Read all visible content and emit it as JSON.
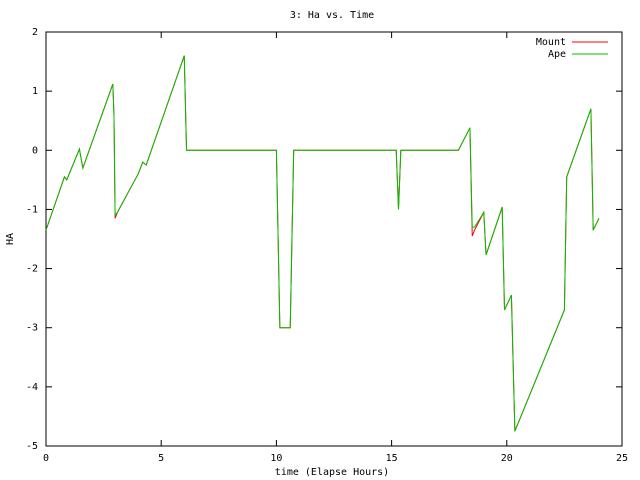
{
  "chart_data": {
    "type": "line",
    "title": "3: Ha vs. Time",
    "x_label": "time (Elapse Hours)",
    "y_label": "HA",
    "x": [
      0,
      0.8,
      0.9,
      1.45,
      1.6,
      2.9,
      2.95,
      3.0,
      3.1,
      4.0,
      4.2,
      4.35,
      6.0,
      6.1,
      10.0,
      10.15,
      10.6,
      10.75,
      15.2,
      15.3,
      15.4,
      17.9,
      18.4,
      18.5,
      18.6,
      19.0,
      19.1,
      19.8,
      19.9,
      20.2,
      20.35,
      22.5,
      22.6,
      23.65,
      23.75,
      24.0
    ],
    "series": [
      {
        "name": "Mount",
        "color": "#ff0000",
        "values": [
          -1.35,
          -0.45,
          -0.5,
          0.02,
          -0.3,
          1.12,
          0.6,
          -1.15,
          -1.05,
          -0.4,
          -0.2,
          -0.25,
          1.6,
          0,
          0,
          -3.0,
          -3.0,
          0,
          0,
          -1.0,
          0,
          0,
          0.38,
          -1.45,
          -1.35,
          -1.05,
          -1.77,
          -0.96,
          -2.7,
          -2.45,
          -4.75,
          -2.7,
          -0.45,
          0.7,
          -1.35,
          -1.15
        ]
      },
      {
        "name": "Ape",
        "color": "#00c000",
        "values": [
          -1.35,
          -0.45,
          -0.5,
          0.02,
          -0.3,
          1.12,
          0.6,
          -1.1,
          -1.05,
          -0.4,
          -0.2,
          -0.25,
          1.6,
          0,
          0,
          -3.0,
          -3.0,
          0,
          0,
          -1.0,
          0,
          0,
          0.38,
          -1.3,
          -1.3,
          -1.05,
          -1.77,
          -0.96,
          -2.7,
          -2.45,
          -4.75,
          -2.7,
          -0.45,
          0.7,
          -1.35,
          -1.15
        ]
      }
    ],
    "xlim": [
      0,
      25
    ],
    "xticks": [
      0,
      5,
      10,
      15,
      20,
      25
    ],
    "ylim": [
      -5,
      2
    ],
    "yticks": [
      -5,
      -4,
      -3,
      -2,
      -1,
      0,
      1,
      2
    ],
    "grid": false,
    "legend": "top-right"
  }
}
